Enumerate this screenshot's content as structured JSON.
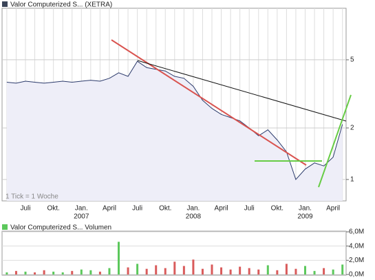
{
  "chart_data": [
    {
      "type": "line",
      "title": "Valor Computerized S... (XETRA)",
      "note": "1 Tick = 1 Woche",
      "categories": [
        null,
        null,
        "Juli",
        null,
        null,
        "Okt.",
        null,
        null,
        "Jan.",
        null,
        null,
        "April",
        null,
        null,
        "Juli",
        null,
        null,
        "Okt.",
        null,
        null,
        "Jan.",
        null,
        null,
        "April",
        null,
        null,
        "Juli",
        null,
        null,
        "Okt.",
        null,
        null,
        "Jan.",
        null,
        null,
        "April",
        null
      ],
      "years": [
        null,
        null,
        null,
        null,
        null,
        null,
        null,
        null,
        "2007",
        null,
        null,
        null,
        null,
        null,
        null,
        null,
        null,
        null,
        null,
        null,
        "2008",
        null,
        null,
        null,
        null,
        null,
        null,
        null,
        null,
        null,
        null,
        null,
        "2009",
        null,
        null,
        null,
        null
      ],
      "series": [
        {
          "color": "#2b3a6b",
          "values": [
            3.7,
            3.65,
            3.75,
            3.7,
            3.65,
            3.7,
            3.75,
            3.7,
            3.75,
            3.8,
            3.75,
            3.9,
            4.2,
            4.0,
            4.9,
            4.5,
            4.4,
            4.3,
            4.0,
            3.9,
            3.5,
            2.9,
            2.6,
            2.4,
            2.3,
            2.2,
            2.0,
            1.8,
            1.95,
            1.7,
            1.45,
            1.0,
            1.15,
            1.25,
            1.2,
            1.35,
            2.1
          ]
        }
      ],
      "log_scale": true,
      "ylim": [
        0.75,
        10
      ],
      "yticks": [
        1,
        2,
        5
      ],
      "grid": true
    },
    {
      "type": "bar",
      "title": "Valor Computerized S... Volumen",
      "values": [
        300000,
        500000,
        400000,
        300000,
        600000,
        400000,
        300000,
        500000,
        700000,
        600000,
        400000,
        900000,
        4600000,
        1000000,
        1500000,
        800000,
        1300000,
        900000,
        1800000,
        1200000,
        2100000,
        800000,
        1400000,
        1000000,
        700000,
        1100000,
        900000,
        700000,
        1300000,
        600000,
        1500000,
        800000,
        1200000,
        500000,
        900000,
        700000,
        1400000
      ],
      "up_color": "#5cc85c",
      "down_color": "#d95b5b",
      "ylim": [
        0,
        6000000
      ],
      "yticks": [
        {
          "value": 0,
          "label": "0,0M"
        },
        {
          "value": 2000000,
          "label": "2,0M"
        },
        {
          "value": 4000000,
          "label": "4,0M"
        },
        {
          "value": 6000000,
          "label": "6,0M"
        }
      ],
      "grid": true
    }
  ]
}
